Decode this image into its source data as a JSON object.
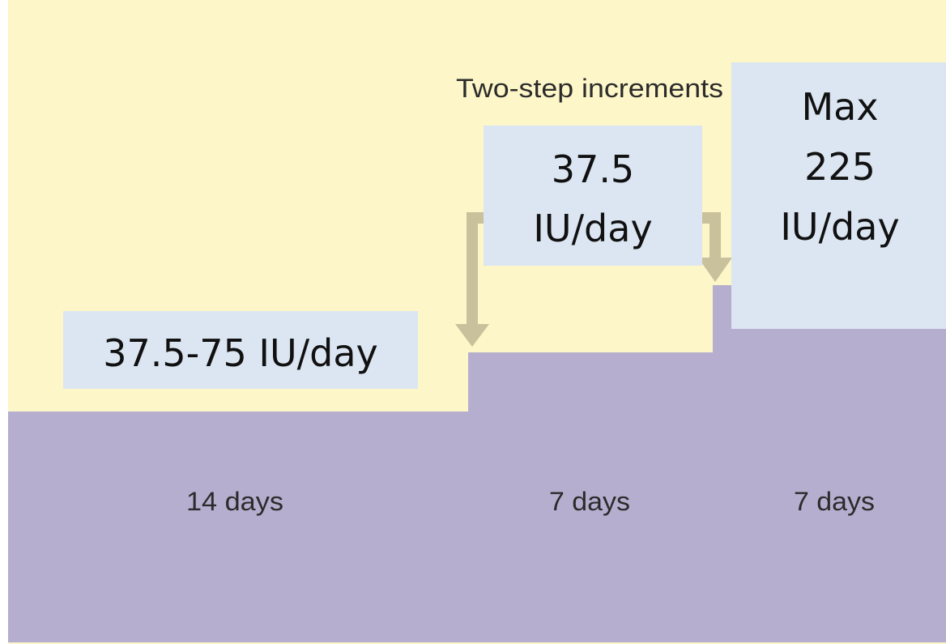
{
  "annotation": "Two-step increments",
  "doses": [
    {
      "lines": [
        "37.5-75 IU/day"
      ]
    },
    {
      "lines": [
        "37.5",
        "IU/day"
      ]
    },
    {
      "lines": [
        "Max",
        "225",
        "IU/day"
      ]
    }
  ],
  "durations": [
    "14 days",
    "7 days",
    "7 days"
  ]
}
